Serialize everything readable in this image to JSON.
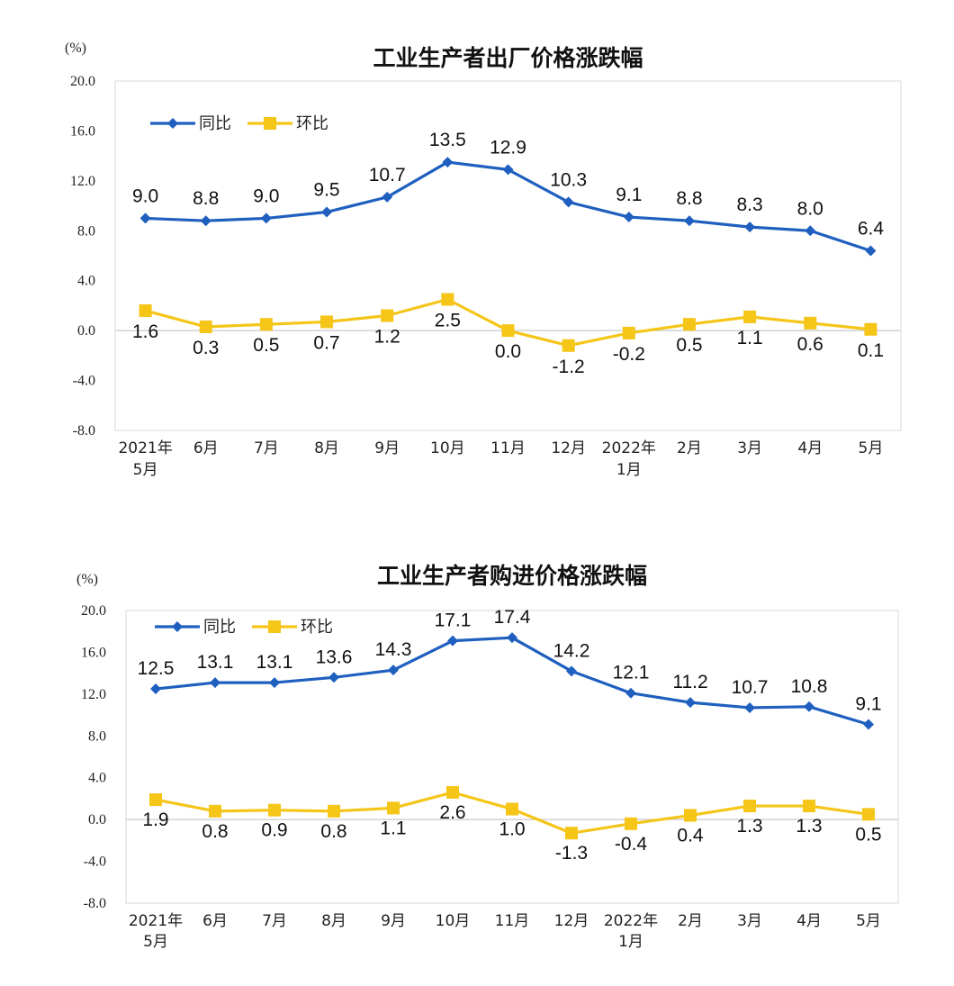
{
  "chart_data": [
    {
      "type": "line",
      "title": "工业生产者出厂价格涨跌幅",
      "unit_label": "(%)",
      "categories": [
        [
          "2021年",
          "5月"
        ],
        [
          "6月"
        ],
        [
          "7月"
        ],
        [
          "8月"
        ],
        [
          "9月"
        ],
        [
          "10月"
        ],
        [
          "11月"
        ],
        [
          "12月"
        ],
        [
          "2022年",
          "1月"
        ],
        [
          "2月"
        ],
        [
          "3月"
        ],
        [
          "4月"
        ],
        [
          "5月"
        ]
      ],
      "ylim": [
        -8,
        20
      ],
      "yticks": [
        "20.0",
        "16.0",
        "12.0",
        "8.0",
        "4.0",
        "0.0",
        "-4.0",
        "-8.0"
      ],
      "ytick_values": [
        20,
        16,
        12,
        8,
        4,
        0,
        -4,
        -8
      ],
      "legend_position": "top-left",
      "series": [
        {
          "name": "同比",
          "color": "#1f5fbf",
          "marker": "diamond",
          "values": [
            9.0,
            8.8,
            9.0,
            9.5,
            10.7,
            13.5,
            12.9,
            10.3,
            9.1,
            8.8,
            8.3,
            8.0,
            6.4
          ],
          "labels": [
            "9.0",
            "8.8",
            "9.0",
            "9.5",
            "10.7",
            "13.5",
            "12.9",
            "10.3",
            "9.1",
            "8.8",
            "8.3",
            "8.0",
            "6.4"
          ],
          "label_position": "above"
        },
        {
          "name": "环比",
          "color": "#f5c518",
          "marker": "square",
          "values": [
            1.6,
            0.3,
            0.5,
            0.7,
            1.2,
            2.5,
            0.0,
            -1.2,
            -0.2,
            0.5,
            1.1,
            0.6,
            0.1
          ],
          "labels": [
            "1.6",
            "0.3",
            "0.5",
            "0.7",
            "1.2",
            "2.5",
            "0.0",
            "-1.2",
            "-0.2",
            "0.5",
            "1.1",
            "0.6",
            "0.1"
          ],
          "label_position": "below"
        }
      ]
    },
    {
      "type": "line",
      "title": "工业生产者购进价格涨跌幅",
      "unit_label": "(%)",
      "categories": [
        [
          "2021年",
          "5月"
        ],
        [
          "6月"
        ],
        [
          "7月"
        ],
        [
          "8月"
        ],
        [
          "9月"
        ],
        [
          "10月"
        ],
        [
          "11月"
        ],
        [
          "12月"
        ],
        [
          "2022年",
          "1月"
        ],
        [
          "2月"
        ],
        [
          "3月"
        ],
        [
          "4月"
        ],
        [
          "5月"
        ]
      ],
      "ylim": [
        -8,
        20
      ],
      "yticks": [
        "20.0",
        "16.0",
        "12.0",
        "8.0",
        "4.0",
        "0.0",
        "-4.0",
        "-8.0"
      ],
      "ytick_values": [
        20,
        16,
        12,
        8,
        4,
        0,
        -4,
        -8
      ],
      "legend_position": "top-left",
      "series": [
        {
          "name": "同比",
          "color": "#1f5fbf",
          "marker": "diamond",
          "values": [
            12.5,
            13.1,
            13.1,
            13.6,
            14.3,
            17.1,
            17.4,
            14.2,
            12.1,
            11.2,
            10.7,
            10.8,
            9.1
          ],
          "labels": [
            "12.5",
            "13.1",
            "13.1",
            "13.6",
            "14.3",
            "17.1",
            "17.4",
            "14.2",
            "12.1",
            "11.2",
            "10.7",
            "10.8",
            "9.1"
          ],
          "label_position": "above"
        },
        {
          "name": "环比",
          "color": "#f5c518",
          "marker": "square",
          "values": [
            1.9,
            0.8,
            0.9,
            0.8,
            1.1,
            2.6,
            1.0,
            -1.3,
            -0.4,
            0.4,
            1.3,
            1.3,
            0.5
          ],
          "labels": [
            "1.9",
            "0.8",
            "0.9",
            "0.8",
            "1.1",
            "2.6",
            "1.0",
            "-1.3",
            "-0.4",
            "0.4",
            "1.3",
            "1.3",
            "0.5"
          ],
          "label_position": "below"
        }
      ]
    }
  ]
}
